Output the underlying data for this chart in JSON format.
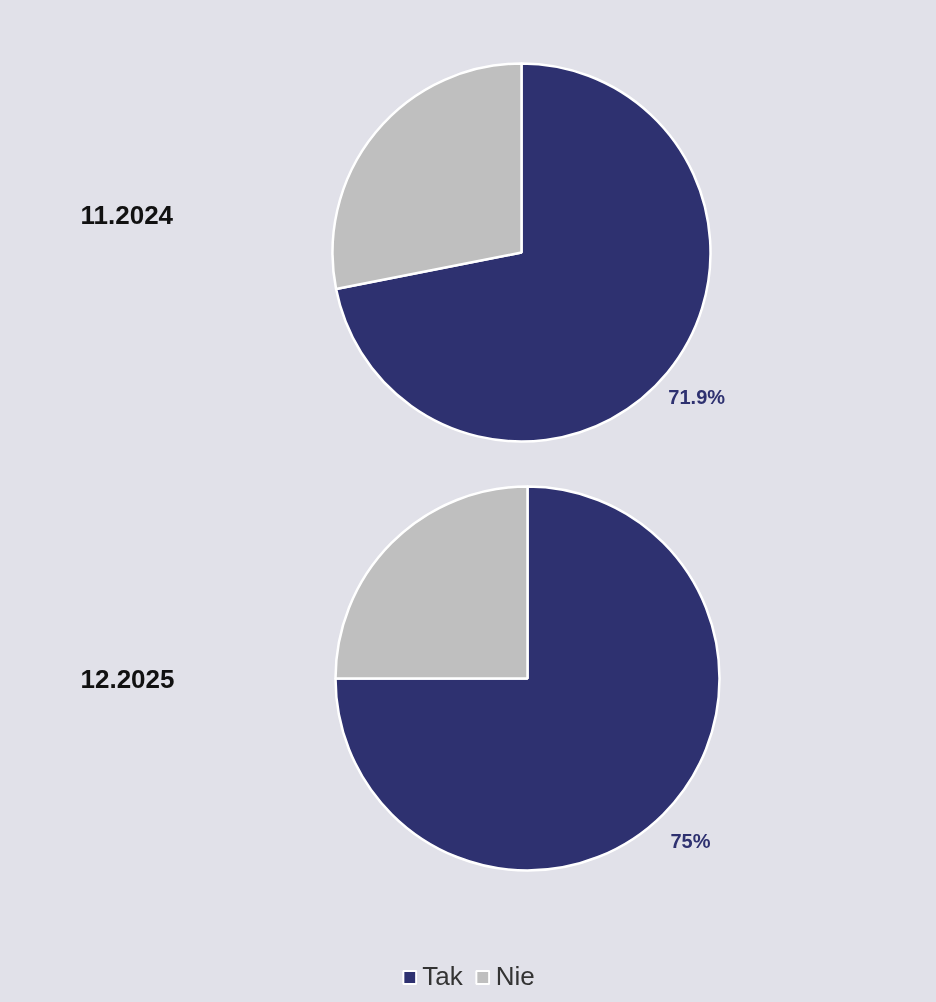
{
  "chart_data": [
    {
      "type": "pie",
      "title": "11.2024",
      "categories": [
        "Tak",
        "Nie"
      ],
      "values": [
        71.9,
        28.1
      ],
      "colors": [
        "#2e3170",
        "#bfbfbf"
      ],
      "value_labels": [
        "71.9%",
        null
      ],
      "legend": "bottom"
    },
    {
      "type": "pie",
      "title": "12.2025",
      "categories": [
        null,
        null
      ],
      "values": [
        75,
        25
      ],
      "colors": [
        "#2e3170",
        "#bfbfbf"
      ],
      "value_labels": [
        "75%",
        null
      ]
    }
  ]
}
